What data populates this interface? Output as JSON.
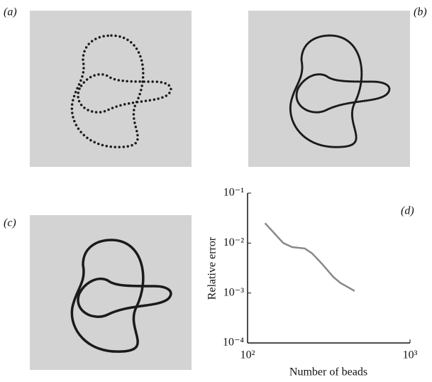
{
  "panels": [
    "(a)",
    "(b)",
    "(c)",
    "(d)"
  ],
  "chart_data": {
    "type": "line",
    "log_x": true,
    "log_y": true,
    "x_label": "Number of beads",
    "y_label": "Relative error",
    "x": [
      128,
      166,
      188,
      225,
      250,
      290,
      337,
      372,
      456
    ],
    "values": [
      0.025,
      0.01,
      0.0083,
      0.0078,
      0.0062,
      0.0037,
      0.0021,
      0.0016,
      0.0011
    ],
    "color": "#888888",
    "xlim": [
      100,
      1000
    ],
    "ylim": [
      0.0001,
      0.1
    ],
    "xticks": [
      {
        "value": 100,
        "label": "10²"
      },
      {
        "value": 1000,
        "label": "10³"
      }
    ],
    "yticks": [
      {
        "value": 0.1,
        "label": "10⁻¹"
      },
      {
        "value": 0.01,
        "label": "10⁻²"
      },
      {
        "value": 0.001,
        "label": "10⁻³"
      },
      {
        "value": 0.0001,
        "label": "10⁻⁴"
      }
    ]
  }
}
